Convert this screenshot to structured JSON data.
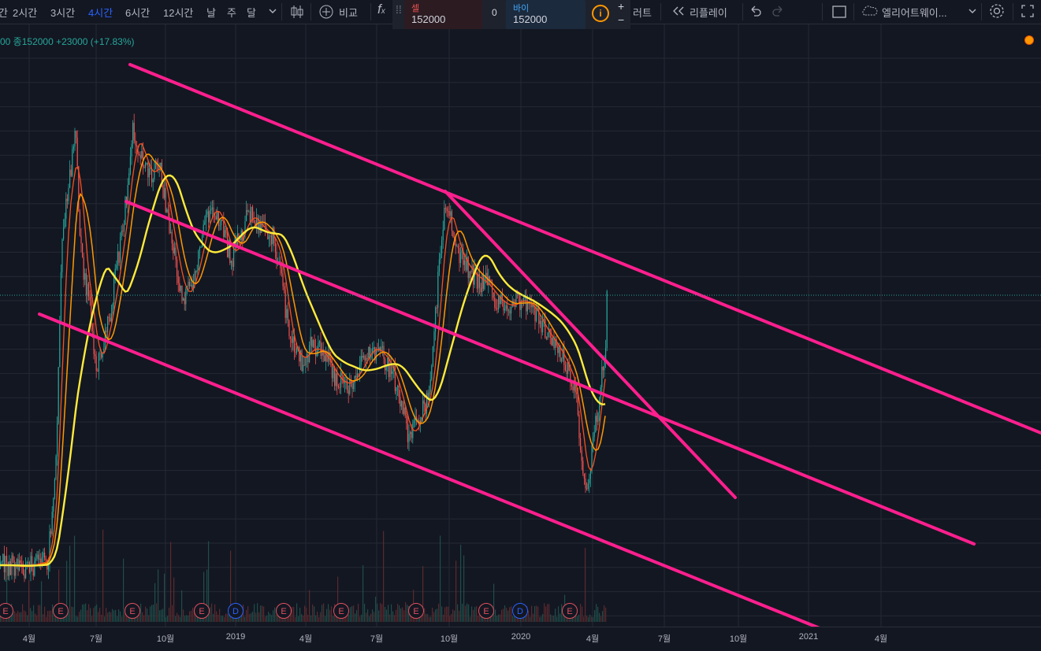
{
  "toolbar": {
    "intervals": [
      "간",
      "2시간",
      "3시간",
      "4시간",
      "6시간",
      "12시간",
      "날",
      "주",
      "달"
    ],
    "active_interval": "4시간",
    "compare_label": "비교",
    "alert_label": "러트",
    "replay_label": "리플레이",
    "layout_name": "엘리어트웨이..."
  },
  "trade": {
    "sell_label": "셀",
    "sell_price": "152000",
    "spread": "0",
    "buy_label": "바이",
    "buy_price": "152000"
  },
  "legend": {
    "text": "00  종152000  +23000  (+17.83%)"
  },
  "x_axis": [
    "4월",
    "7월",
    "10월",
    "2019",
    "4월",
    "7월",
    "10월",
    "2020",
    "4월",
    "7월",
    "10월",
    "2021",
    "4월"
  ],
  "events": [
    "E",
    "E",
    "E",
    "E",
    "D",
    "E",
    "E",
    "E",
    "E",
    "D",
    "E"
  ],
  "colors": {
    "background": "#131722",
    "trendline": "#ff1f8e",
    "ma_yellow": "#ffeb3b",
    "ma_orange": "#ff9800",
    "ma_red": "#f4511e",
    "up_candle": "#26a69a",
    "down_candle": "#ef5350"
  }
}
